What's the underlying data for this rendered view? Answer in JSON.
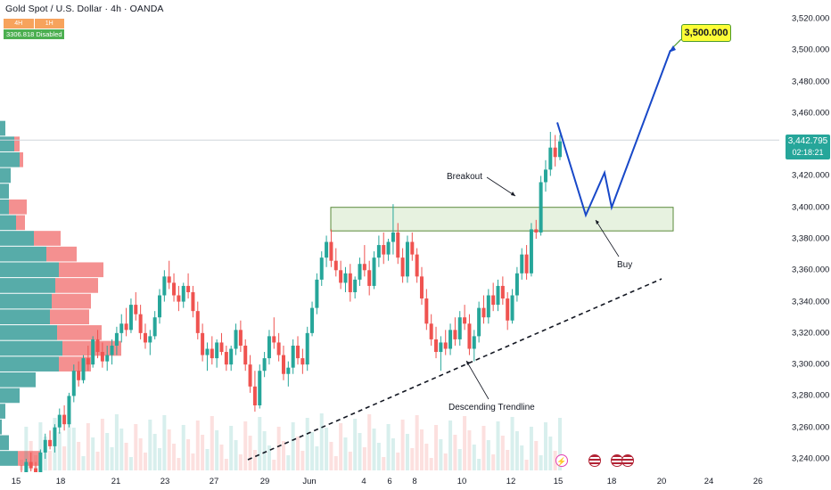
{
  "header": {
    "symbol_title": "Gold Spot / U.S. Dollar · 4h · OANDA",
    "timeframes": [
      "4H",
      "1H"
    ],
    "indicator": "3306.818 Disabled"
  },
  "current_price": {
    "price": "3,442.795",
    "countdown": "02:18:21",
    "value": 3442.795,
    "color": "#26a69a"
  },
  "annotations": {
    "target": "3,500.000",
    "breakout": "Breakout",
    "buy": "Buy",
    "trendline": "Descending Trendline"
  },
  "colors": {
    "up": "#26a69a",
    "down": "#ef5350",
    "projection": "#1848c8",
    "zone_fill": "#e6f2dd",
    "zone_border": "#5a8a3a"
  },
  "events": [
    "lightning-icon",
    "us-flag-icon",
    "us-flag-icon",
    "us-flag-icon"
  ],
  "chart_data": {
    "type": "candlestick",
    "title": "Gold Spot / U.S. Dollar · 4h · OANDA",
    "ylim": [
      3236,
      3532
    ],
    "yticks": [
      3240,
      3260,
      3280,
      3300,
      3320,
      3340,
      3360,
      3380,
      3400,
      3420,
      3440,
      3460,
      3480,
      3500,
      3520
    ],
    "ytick_labels": [
      "3,240.000",
      "3,260.000",
      "3,280.000",
      "3,300.000",
      "3,320.000",
      "3,340.000",
      "3,360.000",
      "3,380.000",
      "3,400.000",
      "3,420.000",
      "3,440.000",
      "3,460.000",
      "3,480.000",
      "3,500.000",
      "3,520.000"
    ],
    "xticks": [
      "15",
      "18",
      "21",
      "23",
      "27",
      "29",
      "Jun",
      "4",
      "6",
      "8",
      "10",
      "12",
      "15",
      "18",
      "20",
      "24",
      "26"
    ],
    "grid": false,
    "candles": [
      [
        3231,
        3236,
        3222,
        3229
      ],
      [
        3229,
        3240,
        3226,
        3238
      ],
      [
        3238,
        3244,
        3232,
        3234
      ],
      [
        3234,
        3238,
        3226,
        3230
      ],
      [
        3230,
        3246,
        3228,
        3244
      ],
      [
        3244,
        3256,
        3240,
        3252
      ],
      [
        3252,
        3258,
        3246,
        3248
      ],
      [
        3248,
        3262,
        3244,
        3260
      ],
      [
        3260,
        3272,
        3256,
        3268
      ],
      [
        3268,
        3274,
        3258,
        3262
      ],
      [
        3262,
        3282,
        3260,
        3280
      ],
      [
        3280,
        3300,
        3276,
        3296
      ],
      [
        3296,
        3302,
        3286,
        3290
      ],
      [
        3290,
        3306,
        3288,
        3304
      ],
      [
        3304,
        3312,
        3296,
        3300
      ],
      [
        3300,
        3318,
        3298,
        3316
      ],
      [
        3316,
        3322,
        3304,
        3308
      ],
      [
        3308,
        3314,
        3298,
        3302
      ],
      [
        3302,
        3312,
        3296,
        3306
      ],
      [
        3306,
        3316,
        3300,
        3312
      ],
      [
        3312,
        3324,
        3306,
        3320
      ],
      [
        3320,
        3332,
        3314,
        3326
      ],
      [
        3326,
        3336,
        3318,
        3322
      ],
      [
        3322,
        3342,
        3320,
        3338
      ],
      [
        3338,
        3346,
        3328,
        3332
      ],
      [
        3332,
        3338,
        3316,
        3320
      ],
      [
        3320,
        3326,
        3310,
        3314
      ],
      [
        3314,
        3322,
        3306,
        3318
      ],
      [
        3318,
        3334,
        3316,
        3330
      ],
      [
        3330,
        3348,
        3326,
        3344
      ],
      [
        3344,
        3360,
        3340,
        3356
      ],
      [
        3356,
        3366,
        3348,
        3352
      ],
      [
        3352,
        3358,
        3340,
        3344
      ],
      [
        3344,
        3350,
        3334,
        3340
      ],
      [
        3340,
        3352,
        3336,
        3350
      ],
      [
        3350,
        3358,
        3342,
        3346
      ],
      [
        3346,
        3350,
        3330,
        3334
      ],
      [
        3334,
        3340,
        3316,
        3320
      ],
      [
        3320,
        3326,
        3302,
        3306
      ],
      [
        3306,
        3314,
        3296,
        3310
      ],
      [
        3310,
        3318,
        3300,
        3304
      ],
      [
        3304,
        3316,
        3298,
        3314
      ],
      [
        3314,
        3320,
        3306,
        3308
      ],
      [
        3308,
        3312,
        3296,
        3300
      ],
      [
        3300,
        3312,
        3296,
        3310
      ],
      [
        3310,
        3326,
        3306,
        3322
      ],
      [
        3322,
        3328,
        3308,
        3312
      ],
      [
        3312,
        3316,
        3296,
        3300
      ],
      [
        3300,
        3306,
        3282,
        3286
      ],
      [
        3286,
        3296,
        3270,
        3274
      ],
      [
        3274,
        3300,
        3272,
        3296
      ],
      [
        3296,
        3308,
        3292,
        3304
      ],
      [
        3304,
        3322,
        3300,
        3318
      ],
      [
        3318,
        3330,
        3310,
        3314
      ],
      [
        3314,
        3320,
        3302,
        3306
      ],
      [
        3306,
        3312,
        3290,
        3294
      ],
      [
        3294,
        3302,
        3286,
        3298
      ],
      [
        3298,
        3316,
        3294,
        3312
      ],
      [
        3312,
        3318,
        3300,
        3304
      ],
      [
        3304,
        3310,
        3294,
        3300
      ],
      [
        3300,
        3324,
        3296,
        3320
      ],
      [
        3320,
        3340,
        3318,
        3336
      ],
      [
        3336,
        3358,
        3332,
        3354
      ],
      [
        3354,
        3372,
        3350,
        3368
      ],
      [
        3368,
        3382,
        3362,
        3378
      ],
      [
        3378,
        3386,
        3362,
        3366
      ],
      [
        3366,
        3374,
        3356,
        3360
      ],
      [
        3360,
        3366,
        3348,
        3352
      ],
      [
        3352,
        3362,
        3346,
        3358
      ],
      [
        3358,
        3364,
        3340,
        3346
      ],
      [
        3346,
        3356,
        3342,
        3354
      ],
      [
        3354,
        3368,
        3350,
        3364
      ],
      [
        3364,
        3376,
        3356,
        3360
      ],
      [
        3360,
        3366,
        3344,
        3350
      ],
      [
        3350,
        3372,
        3348,
        3368
      ],
      [
        3368,
        3382,
        3362,
        3376
      ],
      [
        3376,
        3384,
        3364,
        3370
      ],
      [
        3370,
        3380,
        3366,
        3378
      ],
      [
        3378,
        3402,
        3370,
        3384
      ],
      [
        3384,
        3390,
        3364,
        3368
      ],
      [
        3368,
        3374,
        3352,
        3356
      ],
      [
        3356,
        3382,
        3352,
        3378
      ],
      [
        3378,
        3384,
        3366,
        3370
      ],
      [
        3370,
        3374,
        3352,
        3356
      ],
      [
        3356,
        3362,
        3338,
        3342
      ],
      [
        3342,
        3348,
        3322,
        3326
      ],
      [
        3326,
        3332,
        3312,
        3316
      ],
      [
        3316,
        3324,
        3304,
        3308
      ],
      [
        3308,
        3318,
        3296,
        3314
      ],
      [
        3314,
        3322,
        3306,
        3310
      ],
      [
        3310,
        3326,
        3306,
        3322
      ],
      [
        3322,
        3330,
        3312,
        3316
      ],
      [
        3316,
        3334,
        3312,
        3330
      ],
      [
        3330,
        3338,
        3322,
        3326
      ],
      [
        3326,
        3332,
        3306,
        3310
      ],
      [
        3310,
        3322,
        3302,
        3318
      ],
      [
        3318,
        3340,
        3314,
        3336
      ],
      [
        3336,
        3344,
        3326,
        3330
      ],
      [
        3330,
        3348,
        3326,
        3344
      ],
      [
        3344,
        3352,
        3334,
        3338
      ],
      [
        3338,
        3354,
        3334,
        3350
      ],
      [
        3350,
        3356,
        3338,
        3342
      ],
      [
        3342,
        3346,
        3322,
        3328
      ],
      [
        3328,
        3348,
        3326,
        3344
      ],
      [
        3344,
        3362,
        3340,
        3358
      ],
      [
        3358,
        3374,
        3354,
        3370
      ],
      [
        3370,
        3376,
        3354,
        3358
      ],
      [
        3358,
        3390,
        3356,
        3386
      ],
      [
        3386,
        3392,
        3380,
        3384
      ],
      [
        3384,
        3420,
        3382,
        3416
      ],
      [
        3416,
        3430,
        3410,
        3424
      ],
      [
        3424,
        3448,
        3420,
        3438
      ],
      [
        3438,
        3446,
        3426,
        3432
      ],
      [
        3432,
        3446,
        3430,
        3442
      ]
    ],
    "projection_path": [
      [
        3454,
        0
      ],
      [
        3395,
        1
      ],
      [
        3422,
        2
      ],
      [
        3400,
        3
      ],
      [
        3500,
        4
      ]
    ],
    "resistance_zone": [
      3385,
      3400
    ],
    "trendline": "Descending Trendline",
    "current_price": 3442.795
  }
}
